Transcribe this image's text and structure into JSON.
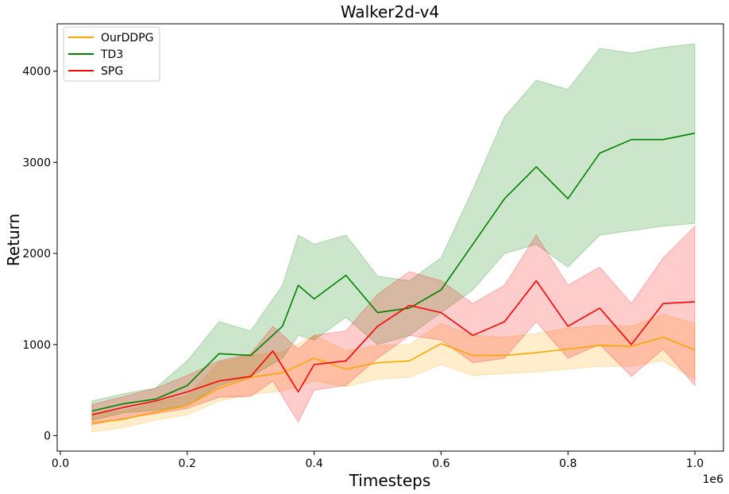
{
  "chart_data": {
    "type": "line",
    "title": "Walker2d-v4",
    "xlabel": "Timesteps",
    "ylabel": "Return",
    "x_offset_label": "1e6",
    "xlim": [
      -0.005,
      1.045
    ],
    "ylim": [
      -170,
      4520
    ],
    "xticks": [
      0.0,
      0.2,
      0.4,
      0.6,
      0.8,
      1.0
    ],
    "xtick_labels": [
      "0.0",
      "0.2",
      "0.4",
      "0.6",
      "0.8",
      "1.0"
    ],
    "yticks": [
      0,
      1000,
      2000,
      3000,
      4000
    ],
    "ytick_labels": [
      "0",
      "1000",
      "2000",
      "3000",
      "4000"
    ],
    "grid": false,
    "legend_position": "top-left",
    "series": [
      {
        "name": "OurDDPG",
        "color": "#FFA500",
        "x": [
          0.05,
          0.1,
          0.15,
          0.2,
          0.25,
          0.3,
          0.35,
          0.4,
          0.45,
          0.5,
          0.55,
          0.6,
          0.65,
          0.7,
          0.75,
          0.8,
          0.85,
          0.9,
          0.95,
          1.0
        ],
        "mean": [
          140,
          180,
          260,
          330,
          520,
          640,
          690,
          850,
          730,
          800,
          820,
          1010,
          880,
          880,
          910,
          950,
          990,
          980,
          1080,
          940
        ],
        "lower": [
          40,
          90,
          170,
          230,
          380,
          450,
          490,
          600,
          540,
          620,
          640,
          780,
          660,
          680,
          700,
          730,
          760,
          760,
          820,
          620
        ],
        "upper": [
          240,
          270,
          360,
          440,
          800,
          880,
          920,
          1100,
          930,
          990,
          1000,
          1230,
          1100,
          1080,
          1120,
          1180,
          1210,
          1200,
          1330,
          1230
        ]
      },
      {
        "name": "TD3",
        "color": "#008000",
        "x": [
          0.05,
          0.1,
          0.15,
          0.2,
          0.25,
          0.3,
          0.35,
          0.375,
          0.4,
          0.45,
          0.5,
          0.55,
          0.6,
          0.65,
          0.7,
          0.75,
          0.8,
          0.85,
          0.9,
          0.95,
          1.0
        ],
        "mean": [
          270,
          350,
          400,
          550,
          900,
          880,
          1200,
          1650,
          1500,
          1760,
          1350,
          1400,
          1600,
          2100,
          2600,
          2950,
          2600,
          3100,
          3250,
          3250,
          3320
        ],
        "lower": [
          170,
          250,
          280,
          330,
          550,
          650,
          850,
          1100,
          1050,
          1300,
          1000,
          1100,
          1350,
          1600,
          2000,
          2100,
          1850,
          2200,
          2250,
          2300,
          2330
        ],
        "upper": [
          380,
          460,
          520,
          820,
          1250,
          1150,
          1650,
          2200,
          2100,
          2200,
          1750,
          1700,
          1950,
          2700,
          3500,
          3900,
          3800,
          4250,
          4200,
          4260,
          4300
        ]
      },
      {
        "name": "SPG",
        "color": "#FF0000",
        "x": [
          0.05,
          0.1,
          0.15,
          0.2,
          0.25,
          0.3,
          0.335,
          0.375,
          0.4,
          0.45,
          0.5,
          0.55,
          0.6,
          0.65,
          0.7,
          0.75,
          0.8,
          0.85,
          0.9,
          0.95,
          1.0
        ],
        "mean": [
          230,
          310,
          380,
          480,
          600,
          650,
          930,
          480,
          780,
          820,
          1200,
          1430,
          1350,
          1100,
          1250,
          1700,
          1200,
          1400,
          1000,
          1450,
          1470
        ],
        "lower": [
          120,
          190,
          240,
          300,
          420,
          430,
          600,
          150,
          500,
          550,
          850,
          1100,
          1050,
          800,
          850,
          1250,
          850,
          1000,
          650,
          950,
          550
        ],
        "upper": [
          340,
          430,
          520,
          660,
          820,
          900,
          1200,
          950,
          1100,
          1150,
          1550,
          1800,
          1700,
          1450,
          1650,
          2200,
          1650,
          1850,
          1450,
          1950,
          2300
        ]
      }
    ]
  }
}
